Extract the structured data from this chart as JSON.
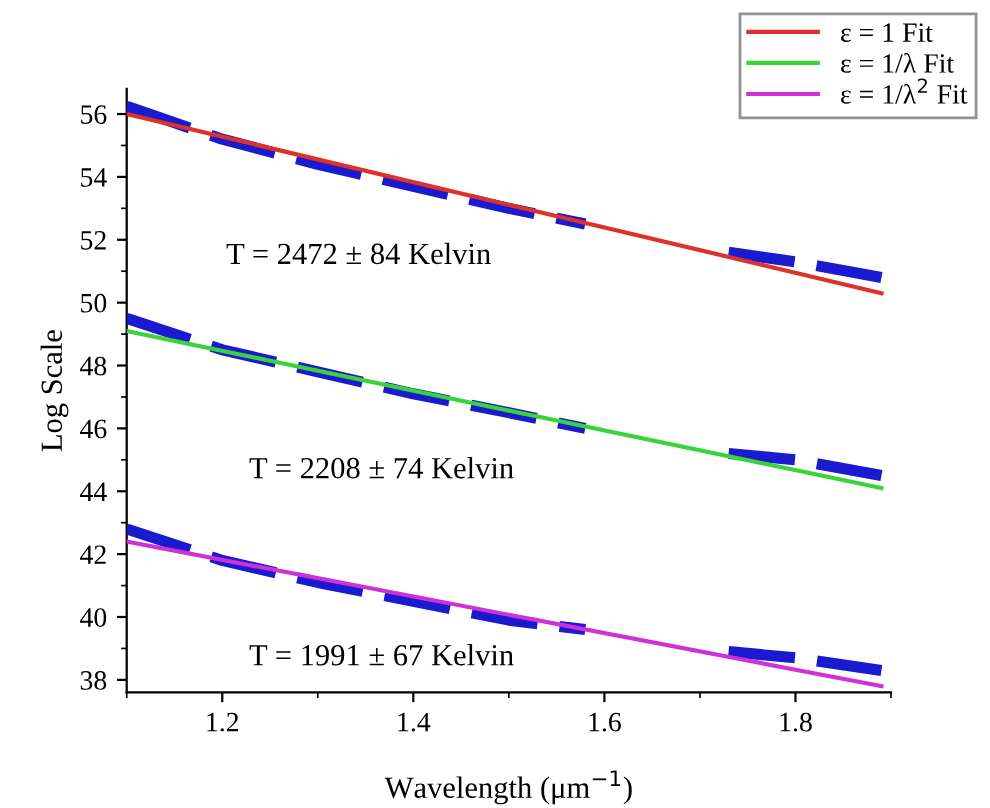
{
  "chart_data": {
    "type": "line",
    "xlabel": "Wavelength (μm$^{−1}$)",
    "ylabel": "Log Scale",
    "xlim": [
      1.1,
      1.9
    ],
    "xticks": [
      1.2,
      1.4,
      1.6,
      1.8
    ],
    "ylim": [
      37.6,
      56.8
    ],
    "yticks": [
      38,
      40,
      42,
      44,
      46,
      48,
      50,
      52,
      54,
      56
    ],
    "grid": false,
    "legend": "top right",
    "series": [
      {
        "name": "ε = 1 Fit",
        "color": "#e0302a",
        "x": [
          1.1,
          1.89
        ],
        "values": [
          56.0,
          50.3
        ],
        "line_style": "solid"
      },
      {
        "name": "ε = 1/λ Fit",
        "color": "#3ad43a",
        "x": [
          1.1,
          1.89
        ],
        "values": [
          49.1,
          44.1
        ],
        "line_style": "solid"
      },
      {
        "name": "ε = 1/λ$^{2}$ Fit",
        "color": "#d030d8",
        "x": [
          1.1,
          1.89
        ],
        "values": [
          42.4,
          37.8
        ],
        "line_style": "solid"
      },
      {
        "color": "#1a1ad0",
        "x": [
          1.1,
          1.2,
          1.3,
          1.4,
          1.5,
          1.58,
          1.65,
          1.73,
          1.8,
          1.89
        ],
        "values": [
          56.25,
          55.2,
          54.4,
          53.7,
          53.0,
          52.5,
          null,
          51.6,
          51.3,
          50.8
        ],
        "line_style": "dashed"
      },
      {
        "color": "#1a1ad0",
        "x": [
          1.1,
          1.2,
          1.3,
          1.4,
          1.5,
          1.58,
          1.65,
          1.73,
          1.8,
          1.89
        ],
        "values": [
          49.5,
          48.5,
          47.8,
          47.1,
          46.5,
          46.0,
          null,
          45.2,
          45.0,
          44.5
        ],
        "line_style": "dashed"
      },
      {
        "color": "#1a1ad0",
        "x": [
          1.1,
          1.2,
          1.3,
          1.4,
          1.5,
          1.58,
          1.65,
          1.73,
          1.8,
          1.89
        ],
        "values": [
          42.8,
          41.8,
          41.1,
          40.5,
          39.9,
          39.6,
          null,
          38.9,
          38.7,
          38.3
        ],
        "line_style": "dashed"
      }
    ],
    "annotations": [
      "T = 2472 ± 84 Kelvin",
      "T = 2208 ± 74 Kelvin",
      "T = 1991 ± 67 Kelvin"
    ]
  }
}
